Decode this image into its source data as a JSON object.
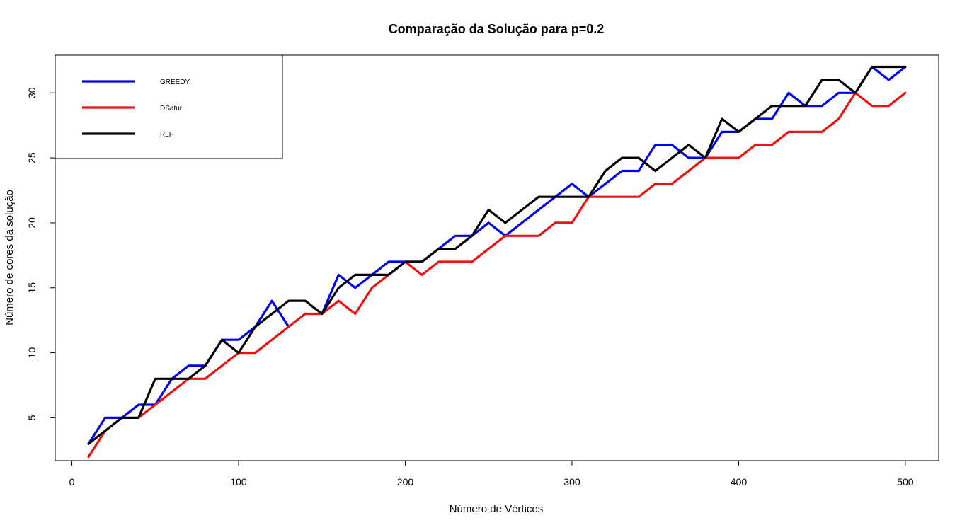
{
  "chart_data": {
    "type": "line",
    "title": "Comparação da Solução para p=0.2",
    "xlabel": "Número de Vértices",
    "ylabel": "Número de cores da solução",
    "xlim": [
      -10,
      520
    ],
    "ylim": [
      1.7,
      32.9
    ],
    "xticks": [
      0,
      100,
      200,
      300,
      400,
      500
    ],
    "yticks": [
      5,
      10,
      15,
      20,
      25,
      30
    ],
    "grid": false,
    "legend_position": "top-left",
    "x": [
      10,
      20,
      30,
      40,
      50,
      60,
      70,
      80,
      90,
      100,
      110,
      120,
      130,
      140,
      150,
      160,
      170,
      180,
      190,
      200,
      210,
      220,
      230,
      240,
      250,
      260,
      270,
      280,
      290,
      300,
      310,
      320,
      330,
      340,
      350,
      360,
      370,
      380,
      390,
      400,
      410,
      420,
      430,
      440,
      450,
      460,
      470,
      480,
      490,
      500
    ],
    "series": [
      {
        "name": "GREEDY",
        "color": "#0000ee",
        "values": [
          3,
          5,
          5,
          6,
          6,
          8,
          9,
          9,
          11,
          11,
          12,
          14,
          12,
          null,
          13,
          16,
          15,
          16,
          17,
          17,
          17,
          18,
          19,
          19,
          20,
          19,
          20,
          21,
          22,
          23,
          22,
          23,
          24,
          24,
          26,
          26,
          25,
          25,
          27,
          27,
          28,
          28,
          30,
          29,
          29,
          30,
          30,
          32,
          31,
          32
        ]
      },
      {
        "name": "DSatur",
        "color": "#ee1111",
        "values": [
          2,
          4,
          null,
          5,
          6,
          7,
          8,
          8,
          9,
          10,
          10,
          11,
          12,
          13,
          13,
          14,
          13,
          15,
          16,
          17,
          16,
          17,
          17,
          17,
          18,
          19,
          19,
          19,
          20,
          20,
          22,
          22,
          22,
          22,
          23,
          23,
          24,
          25,
          25,
          25,
          26,
          26,
          27,
          27,
          27,
          28,
          30,
          29,
          29,
          30
        ]
      },
      {
        "name": "RLF",
        "color": "#000000",
        "values": [
          3,
          4,
          5,
          5,
          8,
          8,
          8,
          9,
          11,
          10,
          12,
          13,
          14,
          14,
          13,
          15,
          16,
          16,
          16,
          17,
          17,
          18,
          18,
          19,
          21,
          20,
          21,
          22,
          22,
          22,
          22,
          24,
          25,
          25,
          24,
          25,
          26,
          25,
          28,
          27,
          28,
          29,
          29,
          29,
          31,
          31,
          30,
          32,
          32,
          32
        ]
      }
    ]
  }
}
